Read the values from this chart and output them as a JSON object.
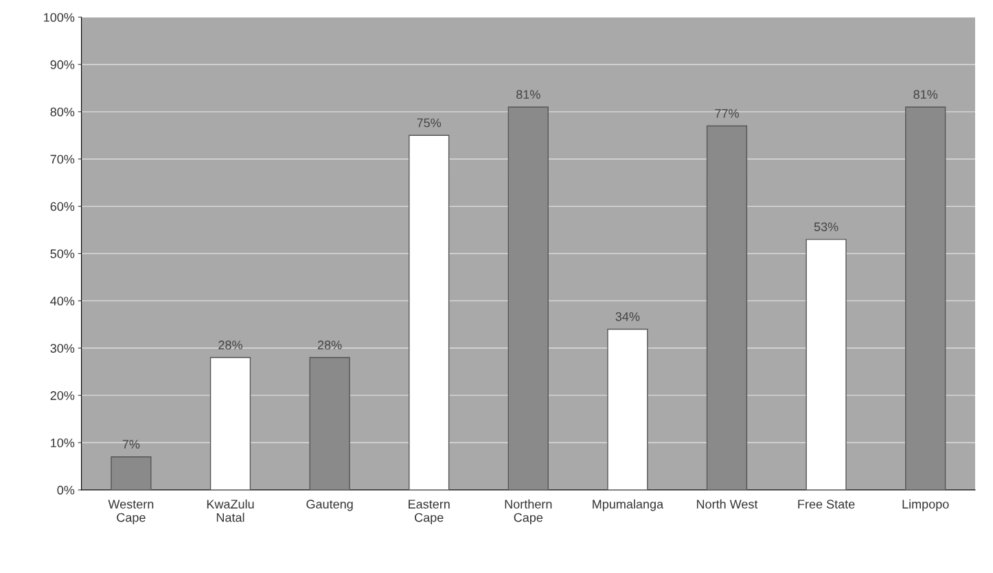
{
  "chart_data": {
    "type": "bar",
    "categories": [
      "Western\nCape",
      "KwaZulu\nNatal",
      "Gauteng",
      "Eastern\nCape",
      "Northern\nCape",
      "Mpumalanga",
      "North West",
      "Free State",
      "Limpopo"
    ],
    "values": [
      7,
      28,
      28,
      75,
      81,
      34,
      77,
      53,
      81
    ],
    "colors": [
      "#8a8a8a",
      "#ffffff",
      "#8a8a8a",
      "#ffffff",
      "#8a8a8a",
      "#ffffff",
      "#8a8a8a",
      "#ffffff",
      "#8a8a8a"
    ],
    "value_labels": [
      "7%",
      "28%",
      "28%",
      "75%",
      "81%",
      "34%",
      "77%",
      "53%",
      "81%"
    ],
    "ylim": [
      0,
      100
    ],
    "yticks": [
      {
        "value": 0,
        "label": "0%"
      },
      {
        "value": 10,
        "label": "10%"
      },
      {
        "value": 20,
        "label": "20%"
      },
      {
        "value": 30,
        "label": "30%"
      },
      {
        "value": 40,
        "label": "40%"
      },
      {
        "value": 50,
        "label": "50%"
      },
      {
        "value": 60,
        "label": "60%"
      },
      {
        "value": 70,
        "label": "70%"
      },
      {
        "value": 80,
        "label": "80%"
      },
      {
        "value": 90,
        "label": "90%"
      },
      {
        "value": 100,
        "label": "100%"
      }
    ],
    "grid": "y",
    "legend": false
  }
}
